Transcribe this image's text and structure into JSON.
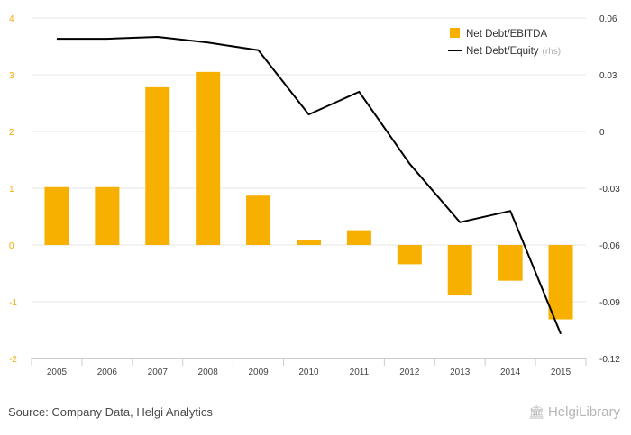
{
  "chart_data": {
    "type": "bar+line",
    "categories": [
      "2005",
      "2006",
      "2007",
      "2008",
      "2009",
      "2010",
      "2011",
      "2012",
      "2013",
      "2014",
      "2015"
    ],
    "series": [
      {
        "name": "Net Debt/EBITDA",
        "type": "bar",
        "axis": "left",
        "color": "#f8b000",
        "values": [
          1.02,
          1.02,
          2.78,
          3.05,
          0.87,
          0.09,
          0.26,
          -0.34,
          -0.89,
          -0.63,
          -1.31
        ]
      },
      {
        "name": "Net Debt/Equity",
        "name_suffix": "(rhs)",
        "type": "line",
        "axis": "right",
        "color": "#000000",
        "values": [
          0.049,
          0.049,
          0.05,
          0.047,
          0.043,
          0.009,
          0.021,
          -0.017,
          -0.048,
          -0.042,
          -0.107
        ]
      }
    ],
    "left_axis": {
      "ylim": [
        -2,
        4
      ],
      "ticks": [
        "4",
        "3",
        "2",
        "1",
        "0",
        "-1",
        "-2"
      ],
      "tick_values": [
        4,
        3,
        2,
        1,
        0,
        -1,
        -2
      ]
    },
    "right_axis": {
      "ylim": [
        -0.12,
        0.06
      ],
      "ticks": [
        "0.06",
        "0.03",
        "0",
        "-0.03",
        "-0.06",
        "-0.09",
        "-0.12"
      ],
      "tick_values": [
        0.06,
        0.03,
        0,
        -0.03,
        -0.06,
        -0.09,
        -0.12
      ]
    },
    "grid": true,
    "legend_position": "top-right"
  },
  "footer": {
    "source": "Source: Company Data, Helgi Analytics",
    "logo_text": "HelgiLibrary"
  }
}
